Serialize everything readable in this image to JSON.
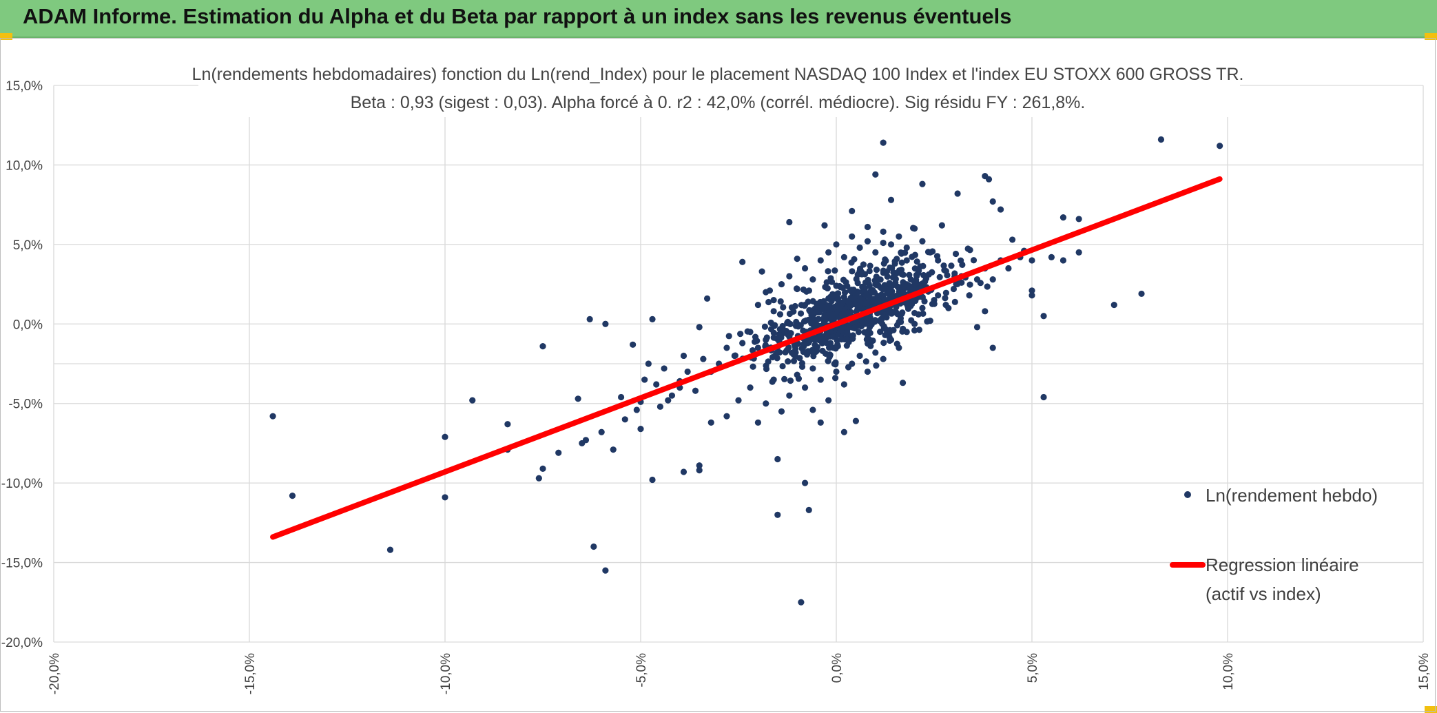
{
  "banner": {
    "title": "ADAM Informe. Estimation du Alpha et du Beta par rapport à un index sans les revenus éventuels"
  },
  "colors": {
    "banner": "#7fc97f",
    "points": "#203864",
    "line": "#ff0000",
    "grid": "#d9d9d9"
  },
  "chart_data": {
    "type": "scatter",
    "title": "Ln(rendements hebdomadaires) fonction du Ln(rend_Index) pour le placement NASDAQ 100 Index et l'index EU STOXX 600 GROSS TR.",
    "subtitle": "Beta : 0,93 (sigest : 0,03). Alpha forcé à 0. r2 : 42,0% (corrél. médiocre). Sig résidu FY : 261,8%.",
    "xlim": [
      -0.2,
      0.15
    ],
    "ylim": [
      -0.2,
      0.15
    ],
    "x_ticks": [
      "-20,0%",
      "-15,0%",
      "-10,0%",
      "-5,0%",
      "0,0%",
      "5,0%",
      "10,0%",
      "15,0%"
    ],
    "y_ticks": [
      "15,0%",
      "10,0%",
      "5,0%",
      "0,0%",
      "-5,0%",
      "-10,0%",
      "-15,0%",
      "-20,0%"
    ],
    "legend": {
      "position": "right",
      "series_label": "Ln(rendement hebdo)",
      "line_label_1": "Regression linéaire",
      "line_label_2": "(actif vs index)"
    },
    "regression": {
      "beta": 0.93,
      "alpha": 0,
      "x_range": [
        -0.144,
        0.098
      ]
    },
    "series": [
      {
        "name": "Ln(rendement hebdo)",
        "points": [
          [
            -0.144,
            -0.058
          ],
          [
            -0.139,
            -0.108
          ],
          [
            -0.114,
            -0.142
          ],
          [
            -0.1,
            -0.071
          ],
          [
            -0.1,
            -0.109
          ],
          [
            -0.093,
            -0.048
          ],
          [
            -0.084,
            -0.063
          ],
          [
            -0.084,
            -0.079
          ],
          [
            -0.075,
            -0.014
          ],
          [
            -0.075,
            -0.091
          ],
          [
            -0.076,
            -0.097
          ],
          [
            -0.071,
            -0.081
          ],
          [
            -0.066,
            -0.047
          ],
          [
            -0.065,
            -0.075
          ],
          [
            -0.064,
            -0.073
          ],
          [
            -0.063,
            0.003
          ],
          [
            -0.062,
            -0.14
          ],
          [
            -0.059,
            -0.155
          ],
          [
            -0.059,
            0.0
          ],
          [
            -0.06,
            -0.068
          ],
          [
            -0.057,
            -0.079
          ],
          [
            -0.055,
            -0.046
          ],
          [
            -0.052,
            -0.013
          ],
          [
            -0.051,
            -0.054
          ],
          [
            -0.05,
            -0.049
          ],
          [
            -0.05,
            -0.066
          ],
          [
            -0.049,
            -0.035
          ],
          [
            -0.048,
            -0.025
          ],
          [
            -0.047,
            0.003
          ],
          [
            -0.047,
            -0.098
          ],
          [
            -0.045,
            -0.052
          ],
          [
            -0.043,
            -0.048
          ],
          [
            -0.04,
            -0.036
          ],
          [
            -0.039,
            -0.093
          ],
          [
            -0.039,
            -0.02
          ],
          [
            -0.035,
            -0.089
          ],
          [
            -0.035,
            -0.092
          ],
          [
            -0.033,
            0.016
          ],
          [
            -0.032,
            -0.062
          ],
          [
            -0.035,
            -0.002
          ],
          [
            -0.024,
            0.039
          ],
          [
            -0.019,
            0.033
          ],
          [
            -0.017,
            0.021
          ],
          [
            -0.015,
            -0.085
          ],
          [
            -0.015,
            -0.12
          ],
          [
            -0.012,
            0.064
          ],
          [
            -0.011,
            -0.018
          ],
          [
            -0.01,
            0.041
          ],
          [
            -0.008,
            -0.1
          ],
          [
            -0.007,
            -0.117
          ],
          [
            -0.009,
            -0.175
          ],
          [
            -0.006,
            -0.054
          ],
          [
            -0.004,
            -0.062
          ],
          [
            -0.003,
            0.062
          ],
          [
            0.002,
            -0.068
          ],
          [
            0.004,
            0.071
          ],
          [
            0.005,
            -0.061
          ],
          [
            0.008,
            0.061
          ],
          [
            0.01,
            0.094
          ],
          [
            0.012,
            0.114
          ],
          [
            0.014,
            0.078
          ],
          [
            0.017,
            -0.037
          ],
          [
            0.022,
            0.088
          ],
          [
            0.027,
            0.062
          ],
          [
            0.031,
            0.082
          ],
          [
            0.038,
            0.093
          ],
          [
            0.039,
            0.091
          ],
          [
            0.04,
            0.077
          ],
          [
            0.042,
            0.072
          ],
          [
            0.045,
            0.053
          ],
          [
            0.047,
            0.042
          ],
          [
            0.048,
            0.046
          ],
          [
            0.05,
            0.04
          ],
          [
            0.05,
            0.021
          ],
          [
            0.05,
            0.018
          ],
          [
            0.053,
            0.005
          ],
          [
            0.053,
            -0.046
          ],
          [
            0.055,
            0.042
          ],
          [
            0.058,
            0.04
          ],
          [
            0.058,
            0.067
          ],
          [
            0.062,
            0.045
          ],
          [
            0.062,
            0.066
          ],
          [
            0.071,
            0.012
          ],
          [
            0.078,
            0.019
          ],
          [
            0.083,
            0.116
          ],
          [
            0.098,
            0.112
          ],
          [
            0.04,
            -0.015
          ],
          [
            0.038,
            0.008
          ],
          [
            0.036,
            -0.002
          ],
          [
            0.032,
            0.026
          ],
          [
            0.025,
            0.015
          ],
          [
            0.021,
            0.006
          ],
          [
            0.02,
            -0.004
          ],
          [
            0.018,
            0.04
          ],
          [
            0.015,
            0.038
          ],
          [
            0.012,
            0.051
          ],
          [
            0.01,
            0.025
          ],
          [
            0.008,
            0.019
          ],
          [
            0.006,
            0.033
          ],
          [
            0.004,
            0.02
          ],
          [
            0.002,
            0.017
          ],
          [
            0.0,
            0.024
          ],
          [
            -0.002,
            0.016
          ],
          [
            -0.004,
            0.01
          ],
          [
            -0.006,
            0.007
          ],
          [
            -0.008,
            0.012
          ],
          [
            -0.01,
            0.0
          ],
          [
            -0.012,
            -0.008
          ],
          [
            -0.014,
            -0.003
          ],
          [
            -0.016,
            0.008
          ],
          [
            -0.018,
            -0.01
          ],
          [
            -0.02,
            -0.015
          ],
          [
            -0.022,
            -0.005
          ],
          [
            -0.024,
            -0.012
          ],
          [
            -0.026,
            -0.02
          ],
          [
            -0.028,
            -0.015
          ],
          [
            -0.03,
            -0.025
          ],
          [
            -0.032,
            -0.03
          ],
          [
            -0.034,
            -0.022
          ],
          [
            -0.036,
            -0.042
          ],
          [
            -0.038,
            -0.03
          ],
          [
            -0.04,
            -0.04
          ],
          [
            -0.042,
            -0.045
          ],
          [
            -0.044,
            -0.028
          ],
          [
            -0.046,
            -0.038
          ],
          [
            -0.054,
            -0.06
          ],
          [
            -0.028,
            -0.058
          ],
          [
            -0.025,
            -0.048
          ],
          [
            -0.022,
            -0.04
          ],
          [
            -0.02,
            -0.062
          ],
          [
            -0.018,
            -0.05
          ],
          [
            -0.016,
            -0.035
          ],
          [
            -0.014,
            -0.055
          ],
          [
            -0.012,
            -0.045
          ],
          [
            -0.01,
            -0.032
          ],
          [
            -0.008,
            -0.04
          ],
          [
            -0.006,
            -0.028
          ],
          [
            -0.004,
            -0.035
          ],
          [
            -0.002,
            -0.048
          ],
          [
            0.0,
            -0.03
          ],
          [
            0.002,
            -0.038
          ],
          [
            0.004,
            -0.025
          ],
          [
            0.006,
            -0.02
          ],
          [
            0.008,
            -0.03
          ],
          [
            0.01,
            -0.018
          ],
          [
            0.012,
            -0.022
          ],
          [
            0.014,
            -0.01
          ],
          [
            0.016,
            -0.015
          ],
          [
            0.018,
            -0.005
          ],
          [
            0.02,
            0.0
          ],
          [
            0.022,
            0.01
          ],
          [
            0.024,
            0.002
          ],
          [
            0.026,
            0.018
          ],
          [
            0.028,
            0.012
          ],
          [
            0.03,
            0.022
          ],
          [
            0.032,
            0.03
          ],
          [
            0.034,
            0.018
          ],
          [
            0.036,
            0.028
          ],
          [
            0.038,
            0.035
          ],
          [
            0.04,
            0.028
          ],
          [
            0.042,
            0.04
          ],
          [
            0.044,
            0.035
          ],
          [
            -0.02,
            0.012
          ],
          [
            -0.018,
            0.02
          ],
          [
            -0.016,
            0.015
          ],
          [
            -0.014,
            0.025
          ],
          [
            -0.012,
            0.03
          ],
          [
            -0.01,
            0.022
          ],
          [
            -0.008,
            0.035
          ],
          [
            -0.006,
            0.028
          ],
          [
            -0.004,
            0.04
          ],
          [
            -0.002,
            0.045
          ],
          [
            0.0,
            0.05
          ],
          [
            0.002,
            0.042
          ],
          [
            0.004,
            0.055
          ],
          [
            0.006,
            0.048
          ],
          [
            0.008,
            0.052
          ],
          [
            0.01,
            0.045
          ],
          [
            0.012,
            0.058
          ],
          [
            0.014,
            0.05
          ],
          [
            0.016,
            0.055
          ],
          [
            0.018,
            0.048
          ],
          [
            0.02,
            0.06
          ],
          [
            0.022,
            0.052
          ],
          [
            0.024,
            0.045
          ],
          [
            0.026,
            0.04
          ]
        ]
      }
    ]
  }
}
